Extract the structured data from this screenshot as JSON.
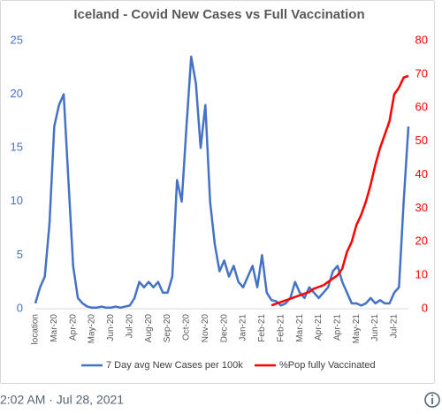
{
  "chart_data": {
    "type": "line",
    "title": "Iceland - Covid New Cases vs Full Vaccination",
    "categories": [
      "location",
      null,
      null,
      null,
      "Mar-20",
      null,
      null,
      null,
      "Apr-20",
      null,
      null,
      null,
      "May-20",
      null,
      null,
      null,
      "Jun-20",
      null,
      null,
      null,
      "Jul-20",
      null,
      null,
      null,
      "Aug-20",
      null,
      null,
      null,
      "Sep-20",
      null,
      null,
      null,
      "Oct-20",
      null,
      null,
      null,
      "Nov-20",
      null,
      null,
      null,
      "Dec-20",
      null,
      null,
      null,
      "Jan-21",
      null,
      null,
      null,
      "Feb-21",
      null,
      null,
      null,
      "Feb-21",
      null,
      null,
      null,
      "Mar-21",
      null,
      null,
      null,
      "Apr-21",
      null,
      null,
      null,
      "Apr-21",
      null,
      null,
      null,
      "May-21",
      null,
      null,
      null,
      "Jun-21",
      null,
      null,
      null,
      "Jul-21",
      null,
      null,
      null
    ],
    "series": [
      {
        "name": "7 Day avg New Cases per 100k",
        "color": "#4472c4",
        "axis": "y",
        "values": [
          0.5,
          2,
          3,
          8,
          17,
          19,
          20,
          12,
          4,
          1,
          0.5,
          0.2,
          0.1,
          0.1,
          0.2,
          0.1,
          0.1,
          0.2,
          0.1,
          0.2,
          0.3,
          1,
          2.5,
          2,
          2.5,
          2,
          2.5,
          1.5,
          1.5,
          3,
          12,
          10,
          17,
          23.5,
          21,
          15,
          19,
          10,
          6,
          3.5,
          4.5,
          3,
          4,
          2.5,
          2,
          3,
          4,
          2,
          5,
          1.5,
          0.8,
          0.7,
          0.3,
          0.5,
          1,
          2.5,
          1.5,
          1,
          2,
          1.5,
          1,
          1.5,
          2,
          3.5,
          4,
          2.5,
          1.5,
          0.5,
          0.5,
          0.3,
          0.5,
          1,
          0.5,
          0.8,
          0.5,
          0.5,
          1.5,
          2,
          10,
          17
        ]
      },
      {
        "name": "%Pop fully Vaccinated",
        "color": "#ff0000",
        "axis": "y2",
        "values": [
          null,
          null,
          null,
          null,
          null,
          null,
          null,
          null,
          null,
          null,
          null,
          null,
          null,
          null,
          null,
          null,
          null,
          null,
          null,
          null,
          null,
          null,
          null,
          null,
          null,
          null,
          null,
          null,
          null,
          null,
          null,
          null,
          null,
          null,
          null,
          null,
          null,
          null,
          null,
          null,
          null,
          null,
          null,
          null,
          null,
          null,
          null,
          null,
          null,
          null,
          1,
          1.5,
          2,
          2.5,
          3,
          3.5,
          4,
          4.5,
          5,
          6,
          6.5,
          7,
          8,
          9,
          10,
          12,
          17,
          20,
          25,
          28,
          32,
          37,
          43,
          48,
          52,
          56,
          64,
          66,
          69,
          69.5
        ]
      }
    ],
    "ylim": [
      0,
      25
    ],
    "yticks": [
      0,
      5,
      10,
      15,
      20,
      25
    ],
    "y2lim": [
      0,
      80
    ],
    "y2ticks": [
      0,
      10,
      20,
      30,
      40,
      50,
      60,
      70,
      80
    ],
    "legend": "bottom"
  },
  "footer": {
    "timestamp": "2:02 AM · Jul 28, 2021"
  }
}
